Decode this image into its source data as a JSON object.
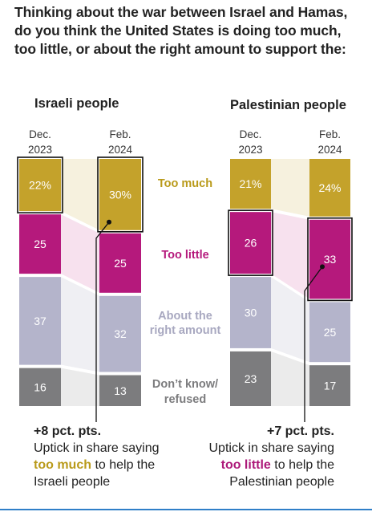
{
  "title": "Thinking about the war between Israel and Hamas, do you think the United States is doing too much, too little, or about the right amount to support the:",
  "category_labels": {
    "too_much": "Too much",
    "too_little": "Too little",
    "about_right_1": "About the",
    "about_right_2": "right amount",
    "dont_know_1": "Don’t know/",
    "dont_know_2": "refused"
  },
  "colors": {
    "too_much": "#c4a22b",
    "too_little": "#b5197c",
    "about_right": "#b4b4cb",
    "dont_know": "#7c7c7e",
    "too_much_label": "#b99a1a",
    "too_little_label": "#b5197c",
    "about_right_label": "#a8a8c0",
    "dont_know_label": "#7c7c7e"
  },
  "chart_data": [
    {
      "type": "bar",
      "title": "Israeli people",
      "categories": [
        "Dec.\n2023",
        "Feb.\n2024"
      ],
      "series": [
        {
          "name": "Too much",
          "values": [
            22,
            30
          ],
          "labels": [
            "22%",
            "30%"
          ]
        },
        {
          "name": "Too little",
          "values": [
            25,
            25
          ],
          "labels": [
            "25",
            "25"
          ]
        },
        {
          "name": "About the right amount",
          "values": [
            37,
            32
          ],
          "labels": [
            "37",
            "32"
          ]
        },
        {
          "name": "Don’t know/ refused",
          "values": [
            16,
            13
          ],
          "labels": [
            "16",
            "13"
          ]
        }
      ]
    },
    {
      "type": "bar",
      "title": "Palestinian people",
      "categories": [
        "Dec.\n2023",
        "Feb.\n2024"
      ],
      "series": [
        {
          "name": "Too much",
          "values": [
            21,
            24
          ],
          "labels": [
            "21%",
            "24%"
          ]
        },
        {
          "name": "Too little",
          "values": [
            26,
            33
          ],
          "labels": [
            "26",
            "33"
          ]
        },
        {
          "name": "About the right amount",
          "values": [
            30,
            25
          ],
          "labels": [
            "30",
            "25"
          ]
        },
        {
          "name": "Don’t know/ refused",
          "values": [
            23,
            17
          ],
          "labels": [
            "23",
            "17"
          ]
        }
      ]
    }
  ],
  "annotations": {
    "left": {
      "headline": "+8 pct. pts.",
      "line1": "Uptick in share saying",
      "highlight": "too much",
      "rest": " to help the",
      "line3": "Israeli people"
    },
    "right": {
      "headline": "+7 pct. pts.",
      "line1": "Uptick in share saying",
      "highlight": "too little",
      "rest": " to help the",
      "line3": "Palestinian people"
    }
  }
}
